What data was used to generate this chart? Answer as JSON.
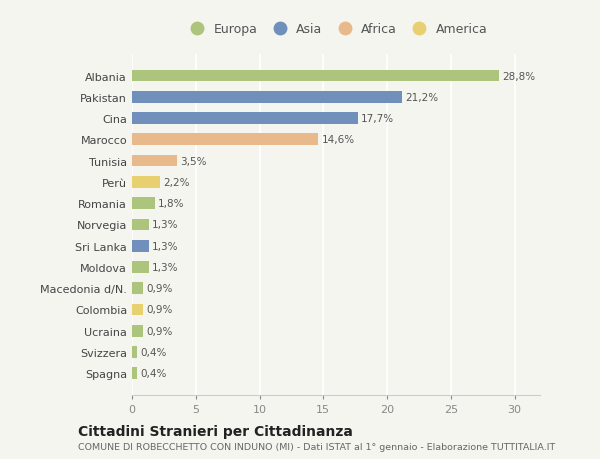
{
  "categories": [
    "Albania",
    "Pakistan",
    "Cina",
    "Marocco",
    "Tunisia",
    "Perù",
    "Romania",
    "Norvegia",
    "Sri Lanka",
    "Moldova",
    "Macedonia d/N.",
    "Colombia",
    "Ucraina",
    "Svizzera",
    "Spagna"
  ],
  "values": [
    28.8,
    21.2,
    17.7,
    14.6,
    3.5,
    2.2,
    1.8,
    1.3,
    1.3,
    1.3,
    0.9,
    0.9,
    0.9,
    0.4,
    0.4
  ],
  "labels": [
    "28,8%",
    "21,2%",
    "17,7%",
    "14,6%",
    "3,5%",
    "2,2%",
    "1,8%",
    "1,3%",
    "1,3%",
    "1,3%",
    "0,9%",
    "0,9%",
    "0,9%",
    "0,4%",
    "0,4%"
  ],
  "continents": [
    "Europa",
    "Asia",
    "Asia",
    "Africa",
    "Africa",
    "America",
    "Europa",
    "Europa",
    "Asia",
    "Europa",
    "Europa",
    "America",
    "Europa",
    "Europa",
    "Europa"
  ],
  "colors": {
    "Europa": "#adc47d",
    "Asia": "#7090bb",
    "Africa": "#e8b98a",
    "America": "#e8d070"
  },
  "legend_order": [
    "Europa",
    "Asia",
    "Africa",
    "America"
  ],
  "legend_colors": [
    "#adc47d",
    "#7090bb",
    "#e8b98a",
    "#e8d070"
  ],
  "xlim": [
    0,
    32
  ],
  "xticks": [
    0,
    5,
    10,
    15,
    20,
    25,
    30
  ],
  "title": "Cittadini Stranieri per Cittadinanza",
  "subtitle": "COMUNE DI ROBECCHETTO CON INDUNO (MI) - Dati ISTAT al 1° gennaio - Elaborazione TUTTITALIA.IT",
  "background_color": "#f5f5f0",
  "bar_height": 0.55,
  "label_fontsize": 7.5,
  "ytick_fontsize": 8.0,
  "xtick_fontsize": 8.0,
  "title_fontsize": 10,
  "subtitle_fontsize": 6.8
}
